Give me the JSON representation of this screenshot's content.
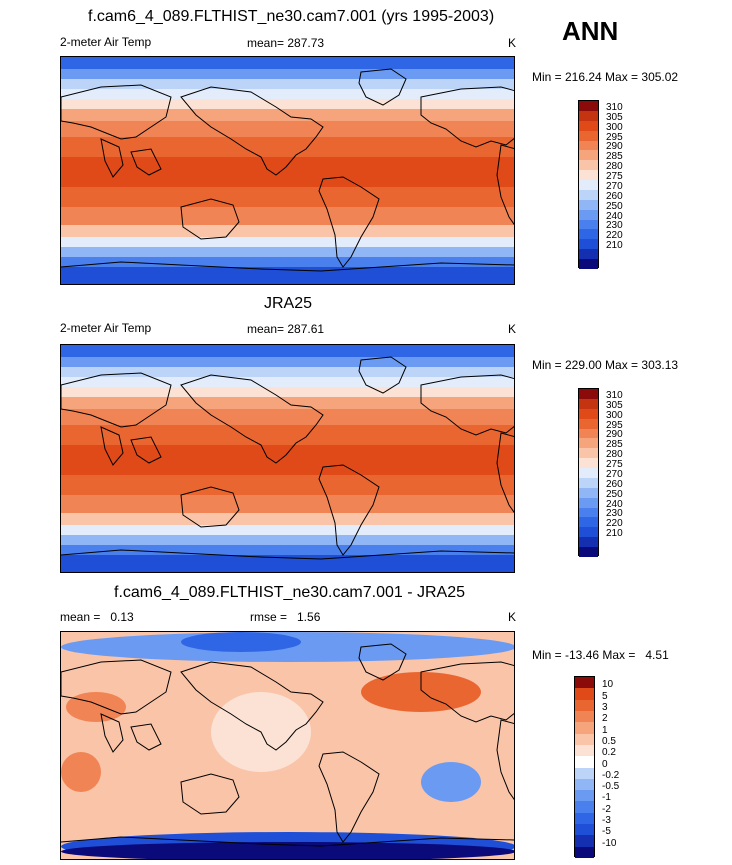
{
  "ann_label": "ANN",
  "panels": [
    {
      "title": "f.cam6_4_089.FLTHIST_ne30.cam7.001 (yrs 1995-2003)",
      "left_text": "2-meter Air Temp",
      "center_text": "mean= 287.73",
      "right_text": "K",
      "minmax": "Min = 216.24 Max = 305.02",
      "colorbar_labels": [
        "310",
        "305",
        "300",
        "295",
        "290",
        "285",
        "280",
        "275",
        "270",
        "260",
        "250",
        "240",
        "230",
        "220",
        "210"
      ]
    },
    {
      "title": "JRA25",
      "left_text": "2-meter Air Temp",
      "center_text": "mean= 287.61",
      "right_text": "K",
      "minmax": "Min = 229.00 Max = 303.13",
      "colorbar_labels": [
        "310",
        "305",
        "300",
        "295",
        "290",
        "285",
        "280",
        "275",
        "270",
        "260",
        "250",
        "240",
        "230",
        "220",
        "210"
      ]
    },
    {
      "title": "f.cam6_4_089.FLTHIST_ne30.cam7.001 - JRA25",
      "left_text": "mean =   0.13",
      "center_text": "rmse =   1.56",
      "right_text": "K",
      "minmax": "Min = -13.46 Max =   4.51",
      "colorbar_labels": [
        "10",
        "5",
        "3",
        "2",
        "1",
        "0.5",
        "0.2",
        "0",
        "-0.2",
        "-0.5",
        "-1",
        "-2",
        "-3",
        "-5",
        "-10"
      ]
    }
  ],
  "colors": {
    "abs_scale": [
      "#0a0a7a",
      "#1430b0",
      "#1f4fd6",
      "#2f66e6",
      "#4a80ee",
      "#6a9af2",
      "#90b6f5",
      "#bcd4f8",
      "#e2ecfb",
      "#fbe2d5",
      "#f9c4a8",
      "#f6a47c",
      "#f08454",
      "#ea6630",
      "#e04a18",
      "#c43410",
      "#8b0a0a"
    ],
    "diff_scale": [
      "#0a0a7a",
      "#1430b0",
      "#1f4fd6",
      "#2f66e6",
      "#4a80ee",
      "#6a9af2",
      "#90b6f5",
      "#bcd4f8",
      "#ffffff",
      "#fbe2d5",
      "#f9c4a8",
      "#f6a47c",
      "#f08454",
      "#ea6630",
      "#e04a18",
      "#8b0a0a"
    ],
    "coast": "#000000"
  }
}
